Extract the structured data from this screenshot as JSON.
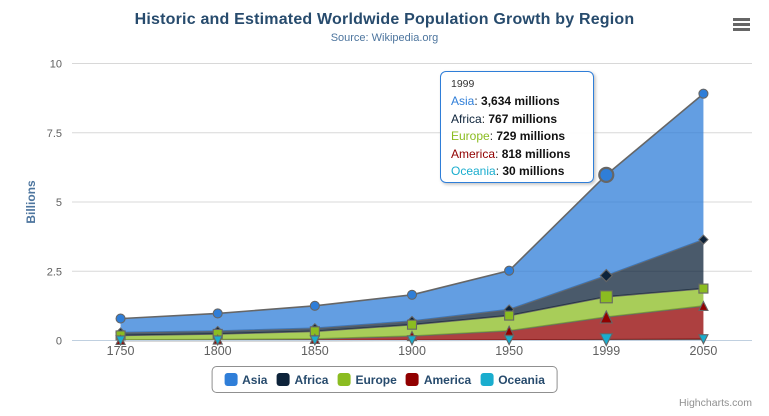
{
  "chart_data": {
    "type": "area",
    "stacking": "normal",
    "title": "Historic and Estimated Worldwide Population Growth by Region",
    "subtitle": "Source: Wikipedia.org",
    "categories": [
      "1750",
      "1800",
      "1850",
      "1900",
      "1950",
      "1999",
      "2050"
    ],
    "ylabel": "Billions",
    "ylim": [
      0,
      10
    ],
    "yticks": [
      0,
      2.5,
      5,
      7.5,
      10
    ],
    "unit": "millions",
    "grid": true,
    "legend_position": "bottom",
    "hovered_category": "1999",
    "series": [
      {
        "name": "Asia",
        "color": "#2f7ed8",
        "marker": "circle",
        "values": [
          502,
          635,
          809,
          947,
          1402,
          3634,
          5268
        ]
      },
      {
        "name": "Africa",
        "color": "#0d233a",
        "marker": "diamond",
        "values": [
          106,
          107,
          111,
          133,
          221,
          767,
          1766
        ]
      },
      {
        "name": "Europe",
        "color": "#8bbc21",
        "marker": "square",
        "values": [
          163,
          203,
          276,
          408,
          547,
          729,
          628
        ]
      },
      {
        "name": "America",
        "color": "#910000",
        "marker": "triangle",
        "values": [
          18,
          31,
          54,
          156,
          339,
          818,
          1201
        ]
      },
      {
        "name": "Oceania",
        "color": "#1aadce",
        "marker": "triangle-down",
        "values": [
          2,
          2,
          2,
          6,
          13,
          30,
          46
        ]
      }
    ]
  },
  "tooltip": {
    "header": "1999",
    "border_color": "#2f7ed8",
    "rows": [
      {
        "name": "Asia",
        "color": "#2f7ed8",
        "value": "3,634 millions"
      },
      {
        "name": "Africa",
        "color": "#0d233a",
        "value": "767 millions"
      },
      {
        "name": "Europe",
        "color": "#8bbc21",
        "value": "729 millions"
      },
      {
        "name": "America",
        "color": "#910000",
        "value": "818 millions"
      },
      {
        "name": "Oceania",
        "color": "#1aadce",
        "value": "30 millions"
      }
    ]
  },
  "icons": {
    "context_menu": "hamburger-menu-icon"
  },
  "style_colors": {
    "title": "#274b6d",
    "subtitle": "#4d759e",
    "axis_labels": "#606060",
    "series_line": "#666666",
    "grid_line": "#d8d8d8",
    "axis_line": "#c0d0e0",
    "legend_border": "#909090"
  },
  "credits": "Highcharts.com"
}
